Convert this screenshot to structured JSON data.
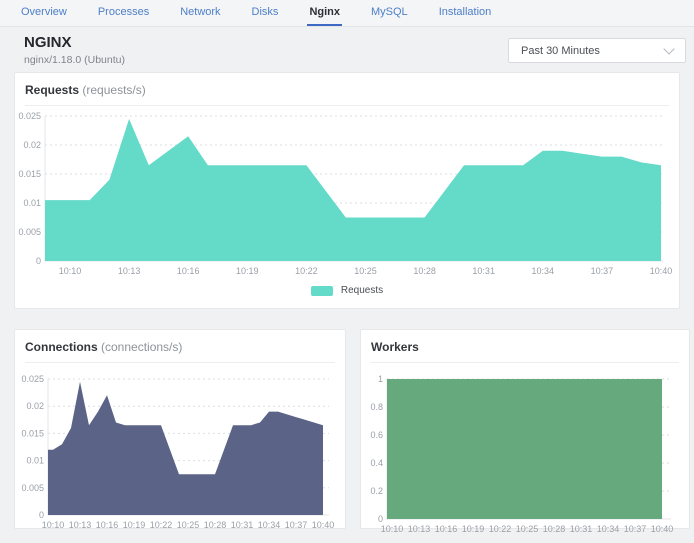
{
  "nav": {
    "tabs": [
      {
        "label": "Overview",
        "active": false
      },
      {
        "label": "Processes",
        "active": false
      },
      {
        "label": "Network",
        "active": false
      },
      {
        "label": "Disks",
        "active": false
      },
      {
        "label": "Nginx",
        "active": true
      },
      {
        "label": "MySQL",
        "active": false
      },
      {
        "label": "Installation",
        "active": false
      }
    ]
  },
  "header": {
    "title": "NGINX",
    "subtitle": "nginx/1.18.0 (Ubuntu)",
    "time_range": "Past 30 Minutes",
    "chevron_icon": "chevron-down"
  },
  "colors": {
    "requests": "#64dac8",
    "connections": "#5b6487",
    "workers": "#66a97c",
    "accent": "#3f6ac4",
    "grid": "#dcdee1"
  },
  "chart_data": [
    {
      "id": "requests",
      "type": "area",
      "title": "Requests",
      "unit": "(requests/s)",
      "xlabel": "",
      "ylabel": "requests/s",
      "ylim": [
        0,
        0.025
      ],
      "yticks": [
        0,
        0.005,
        0.01,
        0.015,
        0.02,
        0.025
      ],
      "ytick_labels": [
        "0",
        "0.005",
        "0.01",
        "0.015",
        "0.02",
        "0.025"
      ],
      "x_labels": [
        "10:10",
        "10:13",
        "10:16",
        "10:19",
        "10:22",
        "10:25",
        "10:28",
        "10:31",
        "10:34",
        "10:37",
        "10:40"
      ],
      "grid": true,
      "legend_position": "bottom-center",
      "series": [
        {
          "name": "Requests",
          "color": "#64dac8",
          "x_minutes": "10:10 to 10:40, 1-minute interval",
          "values": [
            0.0105,
            0.0105,
            0.014,
            0.0245,
            0.0165,
            0.019,
            0.0215,
            0.0165,
            0.0165,
            0.0165,
            0.0165,
            0.0165,
            0.0165,
            0.012,
            0.0075,
            0.0075,
            0.0075,
            0.0075,
            0.0075,
            0.012,
            0.0165,
            0.0165,
            0.0165,
            0.0165,
            0.019,
            0.019,
            0.0185,
            0.018,
            0.018,
            0.017,
            0.0165
          ]
        }
      ]
    },
    {
      "id": "connections",
      "type": "area",
      "title": "Connections",
      "unit": "(connections/s)",
      "xlabel": "",
      "ylabel": "connections/s",
      "ylim": [
        0,
        0.025
      ],
      "yticks": [
        0,
        0.005,
        0.01,
        0.015,
        0.02,
        0.025
      ],
      "ytick_labels": [
        "0",
        "0.005",
        "0.01",
        "0.015",
        "0.02",
        "0.025"
      ],
      "x_labels": [
        "10:10",
        "10:13",
        "10:16",
        "10:19",
        "10:22",
        "10:25",
        "10:28",
        "10:31",
        "10:34",
        "10:37",
        "10:40"
      ],
      "grid": true,
      "legend_position": "bottom-center",
      "series": [
        {
          "name": "Connections",
          "color": "#5b6487",
          "x_minutes": "10:10 to 10:40, 1-minute interval",
          "values": [
            0.012,
            0.013,
            0.016,
            0.0245,
            0.0165,
            0.019,
            0.022,
            0.017,
            0.0165,
            0.0165,
            0.0165,
            0.0165,
            0.0165,
            0.012,
            0.0075,
            0.0075,
            0.0075,
            0.0075,
            0.0075,
            0.012,
            0.0165,
            0.0165,
            0.0165,
            0.017,
            0.019,
            0.019,
            0.0185,
            0.018,
            0.0175,
            0.017,
            0.0165
          ]
        }
      ]
    },
    {
      "id": "workers",
      "type": "area",
      "title": "Workers",
      "unit": "",
      "xlabel": "",
      "ylabel": "workers",
      "ylim": [
        0,
        1
      ],
      "yticks": [
        0,
        0.2,
        0.4,
        0.6,
        0.8,
        1
      ],
      "ytick_labels": [
        "0",
        "0.2",
        "0.4",
        "0.6",
        "0.8",
        "1"
      ],
      "x_labels": [
        "10:10",
        "10:13",
        "10:16",
        "10:19",
        "10:22",
        "10:25",
        "10:28",
        "10:31",
        "10:34",
        "10:37",
        "10:40"
      ],
      "grid": true,
      "legend_position": "bottom-center",
      "series": [
        {
          "name": "Workers",
          "color": "#66a97c",
          "x_minutes": "10:10 to 10:40, 1-minute interval",
          "values": [
            1,
            1,
            1,
            1,
            1,
            1,
            1,
            1,
            1,
            1,
            1,
            1,
            1,
            1,
            1,
            1,
            1,
            1,
            1,
            1,
            1,
            1,
            1,
            1,
            1,
            1,
            1,
            1,
            1,
            1,
            1
          ]
        }
      ]
    }
  ]
}
